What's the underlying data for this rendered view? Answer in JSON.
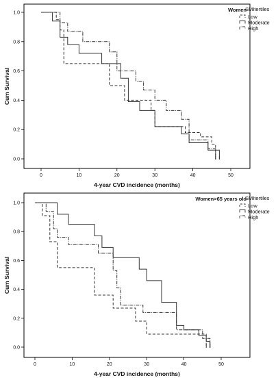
{
  "chart_data": [
    {
      "type": "line",
      "subtype": "kaplan-meier",
      "title": "Women",
      "xlabel": "4-year CVD incidence (months)",
      "ylabel": "Cum Survival",
      "xlim": [
        0,
        50
      ],
      "ylim": [
        0,
        1
      ],
      "x_ticks": [
        "0",
        "10",
        "20",
        "30",
        "40",
        "50"
      ],
      "y_ticks": [
        "0.0",
        "0.2",
        "0.4",
        "0.6",
        "0.8",
        "1.0"
      ],
      "legend_title": "SMItertiles",
      "legend_position": "top-right",
      "grid": false,
      "series": [
        {
          "name": "Low",
          "style": "dashed",
          "points": [
            [
              0,
              1.0
            ],
            [
              4,
              0.95
            ],
            [
              5,
              0.88
            ],
            [
              6,
              0.65
            ],
            [
              18,
              0.5
            ],
            [
              22,
              0.4
            ],
            [
              29,
              0.33
            ],
            [
              30,
              0.22
            ],
            [
              37,
              0.22
            ],
            [
              38,
              0.18
            ],
            [
              42,
              0.15
            ],
            [
              45,
              0.1
            ],
            [
              46,
              0.0
            ]
          ]
        },
        {
          "name": "Moderate",
          "style": "solid",
          "points": [
            [
              0,
              1.0
            ],
            [
              3,
              0.94
            ],
            [
              5,
              0.83
            ],
            [
              7,
              0.78
            ],
            [
              10,
              0.72
            ],
            [
              16,
              0.65
            ],
            [
              21,
              0.55
            ],
            [
              23,
              0.39
            ],
            [
              26,
              0.33
            ],
            [
              30,
              0.22
            ],
            [
              36,
              0.22
            ],
            [
              37,
              0.17
            ],
            [
              39,
              0.11
            ],
            [
              42,
              0.11
            ],
            [
              44,
              0.06
            ],
            [
              47,
              0.0
            ]
          ]
        },
        {
          "name": "High",
          "style": "dash-dot",
          "points": [
            [
              0,
              1.0
            ],
            [
              4,
              1.0
            ],
            [
              5,
              0.93
            ],
            [
              7,
              0.87
            ],
            [
              11,
              0.8
            ],
            [
              18,
              0.73
            ],
            [
              20,
              0.6
            ],
            [
              24,
              0.6
            ],
            [
              25,
              0.53
            ],
            [
              27,
              0.47
            ],
            [
              30,
              0.4
            ],
            [
              33,
              0.33
            ],
            [
              37,
              0.27
            ],
            [
              39,
              0.13
            ],
            [
              44,
              0.07
            ],
            [
              46,
              0.0
            ]
          ]
        }
      ]
    },
    {
      "type": "line",
      "subtype": "kaplan-meier",
      "title": "Women>65 years old",
      "xlabel": "4-year CVD incidence (months)",
      "ylabel": "Cum Survival",
      "xlim": [
        0,
        50
      ],
      "ylim": [
        0,
        1
      ],
      "x_ticks": [
        "0",
        "10",
        "20",
        "30",
        "40",
        "50"
      ],
      "y_ticks": [
        "0.0",
        "0.2",
        "0.4",
        "0.6",
        "0.8",
        "1.0"
      ],
      "legend_title": "SMItertiles",
      "legend_position": "top-right",
      "grid": false,
      "series": [
        {
          "name": "Low",
          "style": "dashed",
          "points": [
            [
              0,
              1.0
            ],
            [
              2,
              0.91
            ],
            [
              4,
              0.73
            ],
            [
              6,
              0.55
            ],
            [
              16,
              0.36
            ],
            [
              21,
              0.27
            ],
            [
              27,
              0.18
            ],
            [
              30,
              0.09
            ],
            [
              40,
              0.09
            ],
            [
              46,
              0.0
            ]
          ]
        },
        {
          "name": "Moderate",
          "style": "solid",
          "points": [
            [
              0,
              1.0
            ],
            [
              6,
              0.92
            ],
            [
              9,
              0.85
            ],
            [
              16,
              0.77
            ],
            [
              18,
              0.69
            ],
            [
              21,
              0.62
            ],
            [
              28,
              0.54
            ],
            [
              30,
              0.46
            ],
            [
              34,
              0.31
            ],
            [
              38,
              0.15
            ],
            [
              40,
              0.12
            ],
            [
              44,
              0.08
            ],
            [
              46,
              0.04
            ],
            [
              47,
              0.0
            ]
          ]
        },
        {
          "name": "High",
          "style": "dash-dot",
          "points": [
            [
              0,
              1.0
            ],
            [
              3,
              0.94
            ],
            [
              5,
              0.82
            ],
            [
              6,
              0.76
            ],
            [
              9,
              0.71
            ],
            [
              17,
              0.65
            ],
            [
              21,
              0.53
            ],
            [
              22,
              0.41
            ],
            [
              23,
              0.29
            ],
            [
              29,
              0.24
            ],
            [
              38,
              0.12
            ],
            [
              45,
              0.06
            ],
            [
              47,
              0.0
            ]
          ]
        }
      ]
    }
  ]
}
